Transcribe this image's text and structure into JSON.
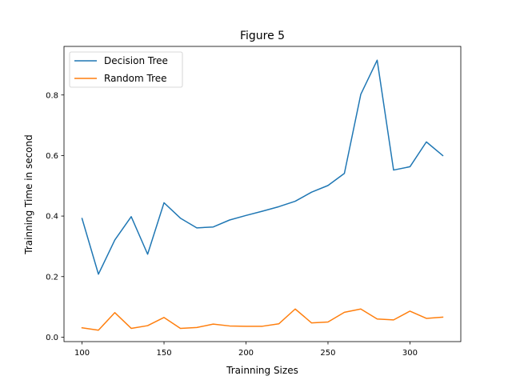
{
  "chart_data": {
    "type": "line",
    "title": "Figure 5",
    "xlabel": "Trainning Sizes",
    "ylabel": "Trainning Time in second",
    "xlim": [
      89,
      331
    ],
    "ylim": [
      -0.0147,
      0.9605
    ],
    "x_ticks": [
      100,
      150,
      200,
      250,
      300
    ],
    "y_ticks": [
      0.0,
      0.2,
      0.4,
      0.6,
      0.8
    ],
    "x_tick_labels": [
      "100",
      "150",
      "200",
      "250",
      "300"
    ],
    "y_tick_labels": [
      "0.0",
      "0.2",
      "0.4",
      "0.6",
      "0.8"
    ],
    "grid": false,
    "legend_position": "top-left",
    "x": [
      100,
      110,
      120,
      130,
      140,
      150,
      160,
      170,
      180,
      190,
      200,
      210,
      220,
      230,
      240,
      250,
      260,
      270,
      280,
      290,
      300,
      310,
      320
    ],
    "series": [
      {
        "name": "Decision Tree",
        "color": "#1f77b4",
        "values": [
          0.392,
          0.208,
          0.321,
          0.398,
          0.274,
          0.444,
          0.393,
          0.361,
          0.364,
          0.387,
          0.402,
          0.416,
          0.431,
          0.449,
          0.479,
          0.501,
          0.541,
          0.802,
          0.915,
          0.552,
          0.563,
          0.645,
          0.6
        ]
      },
      {
        "name": "Random Tree",
        "color": "#ff7f0e",
        "values": [
          0.031,
          0.023,
          0.081,
          0.029,
          0.038,
          0.065,
          0.029,
          0.032,
          0.043,
          0.037,
          0.036,
          0.036,
          0.044,
          0.093,
          0.047,
          0.05,
          0.082,
          0.093,
          0.06,
          0.057,
          0.086,
          0.062,
          0.066
        ]
      }
    ]
  }
}
